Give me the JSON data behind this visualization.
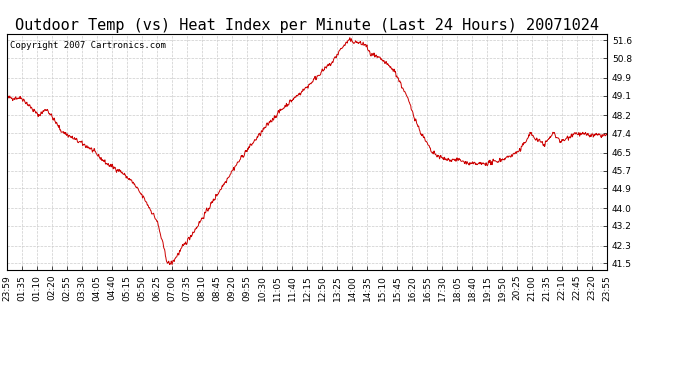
{
  "title": "Outdoor Temp (vs) Heat Index per Minute (Last 24 Hours) 20071024",
  "copyright": "Copyright 2007 Cartronics.com",
  "line_color": "#cc0000",
  "bg_color": "#ffffff",
  "plot_bg_color": "#ffffff",
  "grid_color": "#cccccc",
  "yticks": [
    41.5,
    42.3,
    43.2,
    44.0,
    44.9,
    45.7,
    46.5,
    47.4,
    48.2,
    49.1,
    49.9,
    50.8,
    51.6
  ],
  "ylim": [
    41.2,
    51.9
  ],
  "xtick_labels": [
    "23:59",
    "01:35",
    "01:10",
    "02:20",
    "02:55",
    "03:30",
    "04:05",
    "04:40",
    "05:15",
    "05:50",
    "06:25",
    "07:00",
    "07:35",
    "08:10",
    "08:45",
    "09:20",
    "09:55",
    "10:30",
    "11:05",
    "11:40",
    "12:15",
    "12:50",
    "13:25",
    "14:00",
    "14:35",
    "15:10",
    "15:45",
    "16:20",
    "16:55",
    "17:30",
    "18:05",
    "18:40",
    "19:15",
    "19:50",
    "20:25",
    "21:00",
    "21:35",
    "22:10",
    "22:45",
    "23:20",
    "23:55"
  ],
  "title_fontsize": 11,
  "tick_fontsize": 6.5,
  "copyright_fontsize": 6.5,
  "figwidth": 6.9,
  "figheight": 3.75,
  "dpi": 100
}
